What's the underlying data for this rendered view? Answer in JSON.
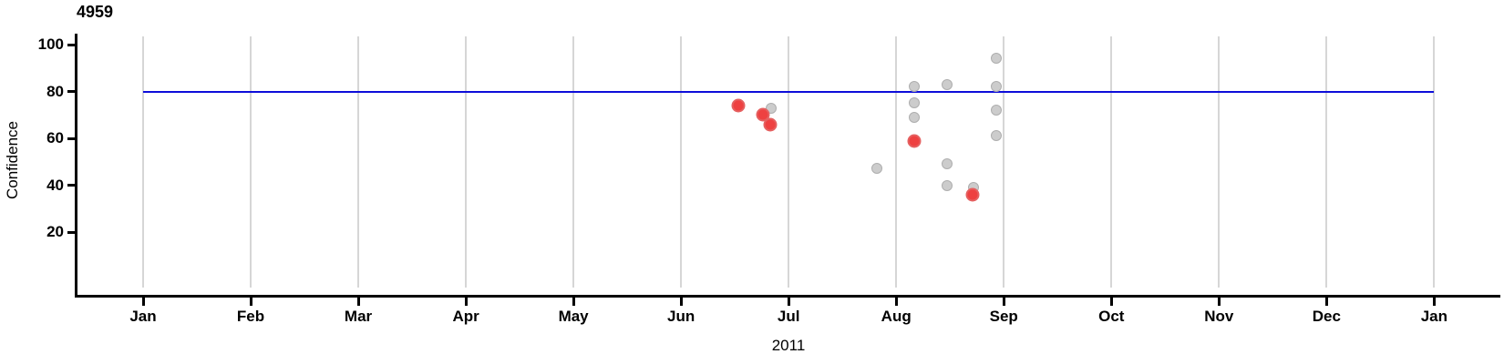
{
  "labels": {
    "title": "4959",
    "xlabel": "2011",
    "ylabel": "Confidence"
  },
  "chart_data": {
    "type": "scatter",
    "title": "4959",
    "xlabel": "2011",
    "ylabel": "Confidence",
    "x_axis": {
      "tick_labels": [
        "Jan",
        "Feb",
        "Mar",
        "Apr",
        "May",
        "Jun",
        "Jul",
        "Aug",
        "Sep",
        "Oct",
        "Nov",
        "Dec",
        "Jan"
      ],
      "unit": "month of 2011, ending Jan 2012"
    },
    "y_axis": {
      "ticks": [
        100,
        80,
        60,
        40,
        20
      ],
      "range": [
        0,
        107
      ]
    },
    "grid": "vertical gridline at each month",
    "legend": "none",
    "reference_line": {
      "y": 80,
      "color": "#0d0dd9",
      "span": "Jan to Jan"
    },
    "series": [
      {
        "name": "highlighted",
        "marker": "large red circle",
        "color": "#ee4141",
        "points": [
          {
            "date": "2011-06-17",
            "month_frac": 5.53,
            "confidence": 74
          },
          {
            "date": "2011-06-23",
            "month_frac": 5.76,
            "confidence": 70
          },
          {
            "date": "2011-06-26",
            "month_frac": 5.83,
            "confidence": 66
          },
          {
            "date": "2011-08-06",
            "month_frac": 7.17,
            "confidence": 59
          },
          {
            "date": "2011-08-23",
            "month_frac": 7.71,
            "confidence": 36
          }
        ]
      },
      {
        "name": "normal",
        "marker": "small gray circle",
        "color": "#cccccc",
        "points": [
          {
            "date": "2011-06-26",
            "month_frac": 5.84,
            "confidence": 73
          },
          {
            "date": "2011-07-26",
            "month_frac": 6.82,
            "confidence": 47
          },
          {
            "date": "2011-08-06",
            "month_frac": 7.17,
            "confidence": 82
          },
          {
            "date": "2011-08-06",
            "month_frac": 7.17,
            "confidence": 75
          },
          {
            "date": "2011-08-06",
            "month_frac": 7.17,
            "confidence": 69
          },
          {
            "date": "2011-08-15",
            "month_frac": 7.47,
            "confidence": 83
          },
          {
            "date": "2011-08-15",
            "month_frac": 7.47,
            "confidence": 49
          },
          {
            "date": "2011-08-15",
            "month_frac": 7.47,
            "confidence": 40
          },
          {
            "date": "2011-08-23",
            "month_frac": 7.72,
            "confidence": 39
          },
          {
            "date": "2011-08-30",
            "month_frac": 7.93,
            "confidence": 94
          },
          {
            "date": "2011-08-30",
            "month_frac": 7.93,
            "confidence": 82
          },
          {
            "date": "2011-08-30",
            "month_frac": 7.93,
            "confidence": 72
          },
          {
            "date": "2011-08-30",
            "month_frac": 7.93,
            "confidence": 61
          }
        ]
      }
    ]
  }
}
